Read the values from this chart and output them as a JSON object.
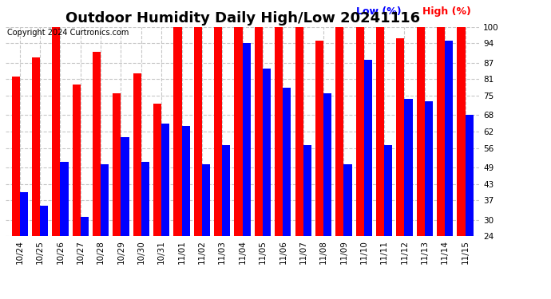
{
  "title": "Outdoor Humidity Daily High/Low 20241116",
  "copyright": "Copyright 2024 Curtronics.com",
  "legend_low": "Low (%)",
  "legend_high": "High (%)",
  "categories": [
    "10/24",
    "10/25",
    "10/26",
    "10/27",
    "10/28",
    "10/29",
    "10/30",
    "10/31",
    "11/01",
    "11/02",
    "11/03",
    "11/04",
    "11/05",
    "11/06",
    "11/07",
    "11/08",
    "11/09",
    "11/10",
    "11/11",
    "11/12",
    "11/13",
    "11/14",
    "11/15"
  ],
  "high_values": [
    82,
    89,
    100,
    79,
    91,
    76,
    83,
    72,
    100,
    100,
    100,
    100,
    100,
    100,
    100,
    95,
    100,
    100,
    100,
    96,
    100,
    100,
    100
  ],
  "low_values": [
    40,
    35,
    51,
    31,
    50,
    60,
    51,
    65,
    64,
    50,
    57,
    94,
    85,
    78,
    57,
    76,
    50,
    88,
    57,
    74,
    73,
    95,
    68
  ],
  "bar_color_high": "#ff0000",
  "bar_color_low": "#0000ff",
  "background_color": "#ffffff",
  "grid_color": "#c8c8c8",
  "ylim_min": 24,
  "ylim_max": 100,
  "yticks": [
    24,
    30,
    37,
    43,
    49,
    56,
    62,
    68,
    75,
    81,
    87,
    94,
    100
  ],
  "title_fontsize": 13,
  "tick_fontsize": 7.5,
  "legend_fontsize": 9
}
